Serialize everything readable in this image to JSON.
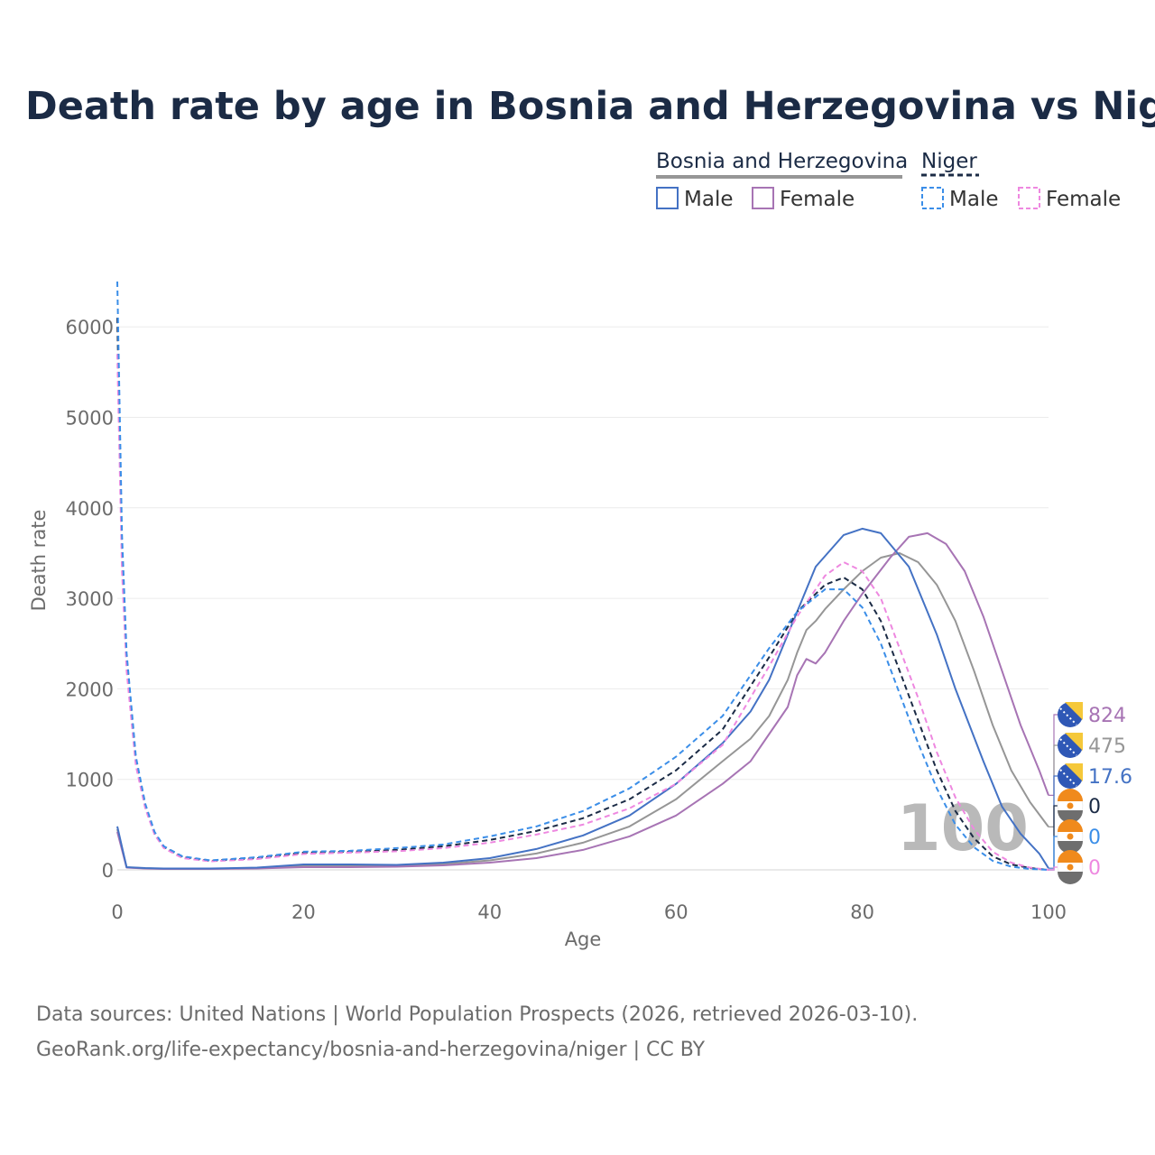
{
  "title": "Death rate by age in Bosnia and Herzegovina vs Niger",
  "legend": {
    "group1": "Bosnia and Herzegovina",
    "group2": "Niger",
    "male": "Male",
    "female": "Female"
  },
  "hover_age": "100",
  "source_line1": "Data sources: United Nations | World Population Prospects (2026, retrieved 2026-03-10).",
  "source_line2": "GeoRank.org/life-expectancy/bosnia-and-herzegovina/niger | CC BY",
  "colors": {
    "bih_male": "#4472c4",
    "bih_female": "#a774b4",
    "bih_total": "#969696",
    "niger_male": "#3b8ee8",
    "niger_female": "#ee88e0",
    "niger_total": "#1b2b45"
  },
  "chart_data": {
    "type": "line",
    "title": "Death rate by age in Bosnia and Herzegovina vs Niger",
    "xlabel": "Age",
    "ylabel": "Death rate",
    "xlim": [
      0,
      100
    ],
    "ylim": [
      0,
      6500
    ],
    "xticks": [
      0,
      20,
      40,
      60,
      80,
      100
    ],
    "yticks": [
      0,
      1000,
      2000,
      3000,
      4000,
      5000,
      6000
    ],
    "grid": true,
    "series": [
      {
        "key": "bih_male",
        "name": "Bosnia and Herzegovina Male",
        "dash": false,
        "end_value": "17.6",
        "points": [
          [
            0,
            480
          ],
          [
            1,
            30
          ],
          [
            3,
            20
          ],
          [
            5,
            15
          ],
          [
            10,
            15
          ],
          [
            15,
            25
          ],
          [
            20,
            60
          ],
          [
            25,
            60
          ],
          [
            30,
            55
          ],
          [
            35,
            80
          ],
          [
            40,
            130
          ],
          [
            45,
            230
          ],
          [
            50,
            380
          ],
          [
            55,
            600
          ],
          [
            60,
            950
          ],
          [
            65,
            1400
          ],
          [
            68,
            1750
          ],
          [
            70,
            2100
          ],
          [
            72,
            2600
          ],
          [
            75,
            3350
          ],
          [
            78,
            3700
          ],
          [
            80,
            3770
          ],
          [
            82,
            3720
          ],
          [
            85,
            3350
          ],
          [
            88,
            2600
          ],
          [
            90,
            2000
          ],
          [
            93,
            1200
          ],
          [
            95,
            700
          ],
          [
            97,
            400
          ],
          [
            99,
            180
          ],
          [
            100,
            17.6
          ]
        ]
      },
      {
        "key": "bih_female",
        "name": "Bosnia and Herzegovina Female",
        "dash": false,
        "end_value": "824",
        "points": [
          [
            0,
            420
          ],
          [
            1,
            25
          ],
          [
            3,
            15
          ],
          [
            5,
            10
          ],
          [
            10,
            10
          ],
          [
            15,
            15
          ],
          [
            20,
            30
          ],
          [
            25,
            30
          ],
          [
            30,
            35
          ],
          [
            35,
            50
          ],
          [
            40,
            80
          ],
          [
            45,
            130
          ],
          [
            50,
            220
          ],
          [
            55,
            370
          ],
          [
            60,
            600
          ],
          [
            65,
            950
          ],
          [
            68,
            1200
          ],
          [
            70,
            1500
          ],
          [
            72,
            1800
          ],
          [
            73,
            2150
          ],
          [
            74,
            2330
          ],
          [
            75,
            2280
          ],
          [
            76,
            2400
          ],
          [
            78,
            2750
          ],
          [
            80,
            3050
          ],
          [
            83,
            3450
          ],
          [
            85,
            3680
          ],
          [
            87,
            3720
          ],
          [
            89,
            3600
          ],
          [
            91,
            3300
          ],
          [
            93,
            2800
          ],
          [
            95,
            2200
          ],
          [
            97,
            1600
          ],
          [
            99,
            1100
          ],
          [
            100,
            824
          ]
        ]
      },
      {
        "key": "bih_total",
        "name": "Bosnia and Herzegovina Total",
        "dash": false,
        "end_value": "475",
        "points": [
          [
            0,
            450
          ],
          [
            1,
            28
          ],
          [
            3,
            18
          ],
          [
            5,
            12
          ],
          [
            10,
            12
          ],
          [
            15,
            20
          ],
          [
            20,
            45
          ],
          [
            25,
            45
          ],
          [
            30,
            45
          ],
          [
            35,
            65
          ],
          [
            40,
            105
          ],
          [
            45,
            180
          ],
          [
            50,
            300
          ],
          [
            55,
            480
          ],
          [
            60,
            780
          ],
          [
            65,
            1200
          ],
          [
            68,
            1450
          ],
          [
            70,
            1700
          ],
          [
            72,
            2100
          ],
          [
            73,
            2400
          ],
          [
            74,
            2650
          ],
          [
            75,
            2750
          ],
          [
            76,
            2880
          ],
          [
            78,
            3100
          ],
          [
            80,
            3300
          ],
          [
            82,
            3450
          ],
          [
            84,
            3500
          ],
          [
            86,
            3400
          ],
          [
            88,
            3150
          ],
          [
            90,
            2750
          ],
          [
            92,
            2200
          ],
          [
            94,
            1600
          ],
          [
            96,
            1100
          ],
          [
            98,
            750
          ],
          [
            100,
            475
          ]
        ]
      },
      {
        "key": "niger_total",
        "name": "Niger Total",
        "dash": true,
        "end_value": "0",
        "points": [
          [
            0,
            6100
          ],
          [
            0.5,
            3500
          ],
          [
            1,
            2300
          ],
          [
            2,
            1200
          ],
          [
            3,
            700
          ],
          [
            4,
            400
          ],
          [
            5,
            250
          ],
          [
            7,
            140
          ],
          [
            10,
            100
          ],
          [
            15,
            130
          ],
          [
            20,
            190
          ],
          [
            25,
            200
          ],
          [
            30,
            220
          ],
          [
            35,
            260
          ],
          [
            40,
            330
          ],
          [
            45,
            430
          ],
          [
            50,
            570
          ],
          [
            55,
            780
          ],
          [
            60,
            1100
          ],
          [
            65,
            1550
          ],
          [
            70,
            2350
          ],
          [
            73,
            2850
          ],
          [
            76,
            3150
          ],
          [
            78,
            3230
          ],
          [
            80,
            3100
          ],
          [
            82,
            2750
          ],
          [
            84,
            2200
          ],
          [
            86,
            1650
          ],
          [
            88,
            1100
          ],
          [
            90,
            650
          ],
          [
            92,
            350
          ],
          [
            94,
            150
          ],
          [
            96,
            60
          ],
          [
            98,
            20
          ],
          [
            100,
            0
          ]
        ]
      },
      {
        "key": "niger_male",
        "name": "Niger Male",
        "dash": true,
        "end_value": "0",
        "points": [
          [
            0,
            6500
          ],
          [
            0.5,
            3700
          ],
          [
            1,
            2400
          ],
          [
            2,
            1250
          ],
          [
            3,
            730
          ],
          [
            4,
            420
          ],
          [
            5,
            260
          ],
          [
            7,
            150
          ],
          [
            10,
            105
          ],
          [
            15,
            140
          ],
          [
            20,
            200
          ],
          [
            25,
            210
          ],
          [
            30,
            240
          ],
          [
            35,
            280
          ],
          [
            40,
            370
          ],
          [
            45,
            480
          ],
          [
            50,
            650
          ],
          [
            55,
            900
          ],
          [
            60,
            1250
          ],
          [
            65,
            1700
          ],
          [
            70,
            2450
          ],
          [
            73,
            2850
          ],
          [
            76,
            3100
          ],
          [
            78,
            3100
          ],
          [
            80,
            2900
          ],
          [
            82,
            2500
          ],
          [
            84,
            1950
          ],
          [
            86,
            1400
          ],
          [
            88,
            900
          ],
          [
            90,
            500
          ],
          [
            92,
            250
          ],
          [
            94,
            100
          ],
          [
            96,
            35
          ],
          [
            98,
            10
          ],
          [
            100,
            0
          ]
        ]
      },
      {
        "key": "niger_female",
        "name": "Niger Female",
        "dash": true,
        "end_value": "0",
        "points": [
          [
            0,
            5700
          ],
          [
            0.5,
            3300
          ],
          [
            1,
            2200
          ],
          [
            2,
            1150
          ],
          [
            3,
            680
          ],
          [
            4,
            390
          ],
          [
            5,
            240
          ],
          [
            7,
            130
          ],
          [
            10,
            95
          ],
          [
            15,
            120
          ],
          [
            20,
            175
          ],
          [
            25,
            190
          ],
          [
            30,
            205
          ],
          [
            35,
            240
          ],
          [
            40,
            300
          ],
          [
            45,
            390
          ],
          [
            50,
            500
          ],
          [
            55,
            680
          ],
          [
            60,
            950
          ],
          [
            65,
            1380
          ],
          [
            70,
            2250
          ],
          [
            73,
            2800
          ],
          [
            76,
            3250
          ],
          [
            78,
            3400
          ],
          [
            80,
            3300
          ],
          [
            82,
            3000
          ],
          [
            84,
            2450
          ],
          [
            86,
            1900
          ],
          [
            88,
            1300
          ],
          [
            90,
            800
          ],
          [
            92,
            450
          ],
          [
            94,
            200
          ],
          [
            96,
            80
          ],
          [
            98,
            25
          ],
          [
            100,
            0
          ]
        ]
      }
    ]
  }
}
